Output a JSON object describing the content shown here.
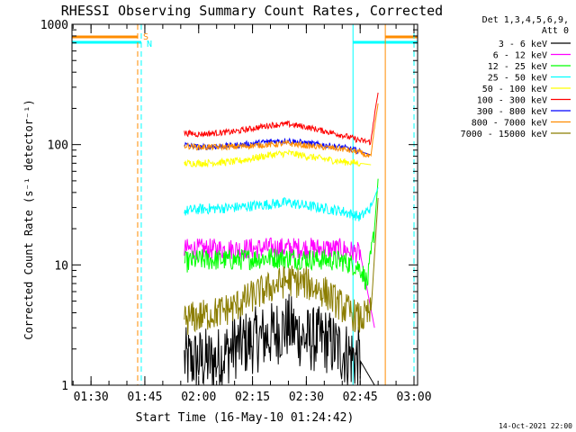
{
  "chart_data": {
    "type": "line",
    "title": "RHESSI Observing Summary Count Rates, Corrected",
    "xlabel": "Start Time (16-May-10 01:24:42)",
    "ylabel": "Corrected Count Rate (s⁻¹ detector⁻¹)",
    "y_scale": "log",
    "ylim": [
      1,
      1000
    ],
    "xlim": [
      "01:24:42",
      "03:01:00"
    ],
    "x_ticks": [
      "01:30",
      "01:45",
      "02:00",
      "02:15",
      "02:30",
      "02:45",
      "03:00"
    ],
    "y_ticks": [
      "1",
      "10",
      "100",
      "1000"
    ],
    "legend_header": [
      "Det 1,3,4,5,6,9,",
      "Att 0"
    ],
    "legend_position": "right",
    "series": [
      {
        "name": "3 - 6 keV",
        "color": "#000000",
        "x": [
          "01:56",
          "02:05",
          "02:10",
          "02:20",
          "02:25",
          "02:30",
          "02:35",
          "02:40",
          "02:45",
          "02:49"
        ],
        "y": [
          1.6,
          1.6,
          2.1,
          2.6,
          3.1,
          2.4,
          2.4,
          1.9,
          1.6,
          1.0
        ]
      },
      {
        "name": "6 - 12 keV",
        "color": "#ff00ff",
        "x": [
          "01:56",
          "02:00",
          "02:10",
          "02:20",
          "02:30",
          "02:40",
          "02:45",
          "02:49"
        ],
        "y": [
          13.5,
          13.5,
          13.5,
          13.8,
          13.8,
          13.5,
          12.5,
          3.0
        ]
      },
      {
        "name": "12 - 25 keV",
        "color": "#00ff00",
        "x": [
          "01:56",
          "02:00",
          "02:10",
          "02:20",
          "02:30",
          "02:40",
          "02:45",
          "02:47",
          "02:49",
          "02:50"
        ],
        "y": [
          10.5,
          11.0,
          11.0,
          11.5,
          11.2,
          10.8,
          9.5,
          7.0,
          20,
          52
        ]
      },
      {
        "name": "25 - 50 keV",
        "color": "#00ffff",
        "x": [
          "01:56",
          "02:00",
          "02:10",
          "02:20",
          "02:25",
          "02:30",
          "02:40",
          "02:45",
          "02:48",
          "02:50"
        ],
        "y": [
          28,
          29,
          30,
          32,
          33,
          31,
          28,
          25,
          30,
          44
        ]
      },
      {
        "name": "50 - 100 keV",
        "color": "#ffff00",
        "x": [
          "01:56",
          "02:00",
          "02:10",
          "02:20",
          "02:25",
          "02:30",
          "02:40",
          "02:45",
          "02:48"
        ],
        "y": [
          70,
          70,
          72,
          82,
          85,
          80,
          72,
          70,
          68
        ]
      },
      {
        "name": "100 - 300 keV",
        "color": "#ff0000",
        "x": [
          "01:56",
          "02:00",
          "02:10",
          "02:20",
          "02:25",
          "02:30",
          "02:40",
          "02:45",
          "02:48",
          "02:49",
          "02:50"
        ],
        "y": [
          125,
          122,
          128,
          145,
          148,
          140,
          120,
          108,
          105,
          180,
          270
        ]
      },
      {
        "name": "300 - 800 keV",
        "color": "#0000ff",
        "x": [
          "01:56",
          "02:00",
          "02:10",
          "02:20",
          "02:25",
          "02:30",
          "02:40",
          "02:45",
          "02:48"
        ],
        "y": [
          100,
          95,
          98,
          106,
          108,
          103,
          95,
          88,
          82
        ]
      },
      {
        "name": "800 - 7000 keV",
        "color": "#ff8c00",
        "x": [
          "01:56",
          "02:00",
          "02:10",
          "02:20",
          "02:25",
          "02:30",
          "02:40",
          "02:45",
          "02:48",
          "02:49",
          "02:50"
        ],
        "y": [
          98,
          95,
          96,
          100,
          102,
          98,
          92,
          86,
          78,
          140,
          220
        ]
      },
      {
        "name": "7000 - 15000 keV",
        "color": "#8b7d00",
        "x": [
          "01:56",
          "02:05",
          "02:10",
          "02:15",
          "02:20",
          "02:25",
          "02:30",
          "02:35",
          "02:40",
          "02:45",
          "02:48",
          "02:50"
        ],
        "y": [
          3.5,
          4.0,
          4.5,
          5.5,
          6.5,
          7.5,
          7.0,
          6.0,
          4.5,
          3.5,
          4.0,
          36
        ]
      }
    ],
    "markers": {
      "S_label": "S",
      "N_label": "N",
      "saa_color": "#ff8c00",
      "night_color": "#00ffff",
      "saa_bars": [
        [
          "01:24:42",
          "01:43"
        ],
        [
          "02:52",
          "03:01"
        ]
      ],
      "night_bars": [
        [
          "01:24:42",
          "01:44"
        ],
        [
          "02:43",
          "03:01"
        ]
      ],
      "saa_lines_dashed": [
        "01:43",
        "03:00"
      ],
      "night_lines_dashed": [
        "01:44",
        "03:00"
      ],
      "night_line_solid": "02:43",
      "saa_line_solid": "02:52"
    }
  },
  "footer_date": "14-Oct-2021 22:00"
}
